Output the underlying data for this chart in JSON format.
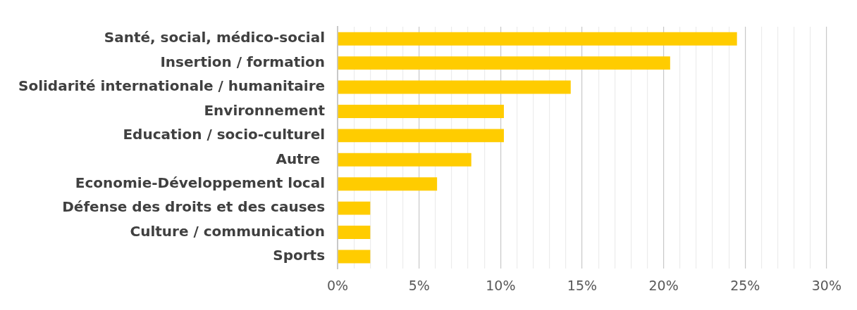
{
  "chart_data": {
    "type": "bar",
    "orientation": "horizontal",
    "categories": [
      "Santé, social, médico-social",
      "Insertion / formation",
      "Solidarité internationale / humanitaire",
      "Environnement",
      "Education / socio-culturel",
      "Autre ",
      "Economie-Développement local",
      "Défense des droits et des causes",
      "Culture / communication",
      "Sports"
    ],
    "values": [
      24.5,
      20.4,
      14.3,
      10.2,
      10.2,
      8.2,
      6.1,
      2.0,
      2.0,
      2.0
    ],
    "color": "#ffcc00",
    "xlim": [
      0,
      30
    ],
    "xticks": [
      {
        "value": 0,
        "label": "0%"
      },
      {
        "value": 1,
        "label": null
      },
      {
        "value": 2,
        "label": null
      },
      {
        "value": 3,
        "label": null
      },
      {
        "value": 4,
        "label": null
      },
      {
        "value": 5,
        "label": "5%"
      },
      {
        "value": 6,
        "label": null
      },
      {
        "value": 7,
        "label": null
      },
      {
        "value": 8,
        "label": null
      },
      {
        "value": 9,
        "label": null
      },
      {
        "value": 10,
        "label": "10%"
      },
      {
        "value": 11,
        "label": null
      },
      {
        "value": 12,
        "label": null
      },
      {
        "value": 13,
        "label": null
      },
      {
        "value": 14,
        "label": null
      },
      {
        "value": 15,
        "label": "15%"
      },
      {
        "value": 16,
        "label": null
      },
      {
        "value": 17,
        "label": null
      },
      {
        "value": 18,
        "label": null
      },
      {
        "value": 19,
        "label": null
      },
      {
        "value": 20,
        "label": "20%"
      },
      {
        "value": 21,
        "label": null
      },
      {
        "value": 22,
        "label": null
      },
      {
        "value": 23,
        "label": null
      },
      {
        "value": 24,
        "label": null
      },
      {
        "value": 25,
        "label": "25%"
      },
      {
        "value": 26,
        "label": null
      },
      {
        "value": 27,
        "label": null
      },
      {
        "value": 28,
        "label": null
      },
      {
        "value": 29,
        "label": null
      },
      {
        "value": 30,
        "label": "30%"
      }
    ],
    "grid": "x",
    "legend": false
  }
}
